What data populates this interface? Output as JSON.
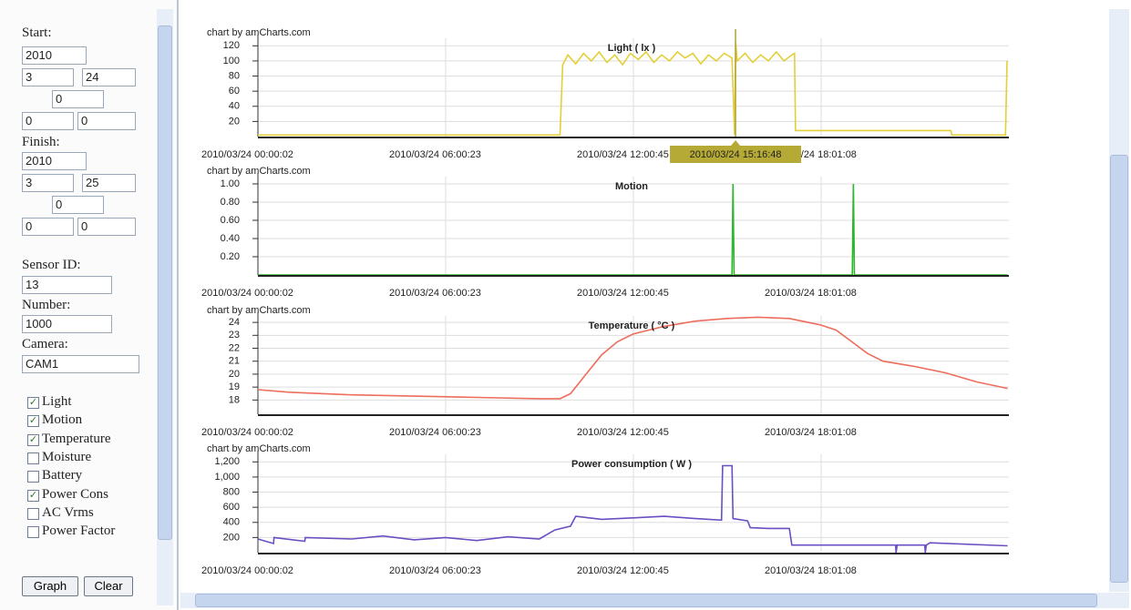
{
  "sidebar": {
    "start": {
      "label": "Start:",
      "year": "2010",
      "month": "3",
      "day": "24",
      "hour": "0",
      "minute": "0",
      "second": "0"
    },
    "finish": {
      "label": "Finish:",
      "year": "2010",
      "month": "3",
      "day": "25",
      "hour": "0",
      "minute": "0",
      "second": "0"
    },
    "sensor_id": {
      "label": "Sensor ID:",
      "value": "13"
    },
    "number": {
      "label": "Number:",
      "value": "1000"
    },
    "camera": {
      "label": "Camera:",
      "value": "CAM1"
    },
    "checkboxes": [
      {
        "label": "Light",
        "checked": true
      },
      {
        "label": "Motion",
        "checked": true
      },
      {
        "label": "Temperature",
        "checked": true
      },
      {
        "label": "Moisture",
        "checked": false
      },
      {
        "label": "Battery",
        "checked": false
      },
      {
        "label": "Power Cons",
        "checked": true
      },
      {
        "label": "AC Vrms",
        "checked": false
      },
      {
        "label": "Power Factor",
        "checked": false
      }
    ],
    "buttons": [
      "Graph",
      "Clear"
    ]
  },
  "chart_data": [
    {
      "type": "line",
      "credit": "chart by amCharts.com",
      "title": "Light ( lx )",
      "color": "#e3cf3a",
      "grid": true,
      "cursor": "2010/03/24 15:16:48",
      "x": [
        "2010/03/24 00:00:02",
        "2010/03/24 09:40:00",
        "2010/03/24 09:45:00",
        "2010/03/24 09:55:00",
        "2010/03/24 10:10:00",
        "2010/03/24 10:25:00",
        "2010/03/24 10:40:00",
        "2010/03/24 10:55:00",
        "2010/03/24 11:10:00",
        "2010/03/24 11:25:00",
        "2010/03/24 11:40:00",
        "2010/03/24 11:55:00",
        "2010/03/24 12:10:00",
        "2010/03/24 12:25:00",
        "2010/03/24 12:40:00",
        "2010/03/24 12:55:00",
        "2010/03/24 13:10:00",
        "2010/03/24 13:25:00",
        "2010/03/24 13:40:00",
        "2010/03/24 13:55:00",
        "2010/03/24 14:10:00",
        "2010/03/24 14:25:00",
        "2010/03/24 14:40:00",
        "2010/03/24 14:55:00",
        "2010/03/24 15:10:00",
        "2010/03/24 15:15:00",
        "2010/03/24 15:17:00",
        "2010/03/24 15:20:00",
        "2010/03/24 15:35:00",
        "2010/03/24 15:50:00",
        "2010/03/24 16:05:00",
        "2010/03/24 16:20:00",
        "2010/03/24 16:35:00",
        "2010/03/24 16:50:00",
        "2010/03/24 17:05:00",
        "2010/03/24 17:10:00",
        "2010/03/24 17:12:00",
        "2010/03/24 22:10:00",
        "2010/03/24 22:12:00",
        "2010/03/24 23:55:00",
        "2010/03/24 23:58:00"
      ],
      "values": [
        2,
        2,
        95,
        108,
        96,
        110,
        100,
        112,
        98,
        108,
        95,
        110,
        102,
        112,
        98,
        108,
        100,
        112,
        104,
        110,
        96,
        108,
        100,
        110,
        104,
        2,
        125,
        100,
        110,
        98,
        108,
        100,
        112,
        100,
        108,
        110,
        8,
        8,
        2,
        2,
        100
      ],
      "xlim": [
        "2010/03/24 00:00:02",
        "2010/03/25 00:01:30"
      ],
      "xticks": [
        "2010/03/24 00:00:02",
        "2010/03/24 06:00:23",
        "2010/03/24 12:00:45",
        "2010/03/24 18:01:08"
      ],
      "ylim": [
        0,
        130
      ],
      "yticks": [
        20,
        40,
        60,
        80,
        100,
        120
      ]
    },
    {
      "type": "line",
      "credit": "chart by amCharts.com",
      "title": "Motion",
      "color": "#2fb52f",
      "grid": true,
      "x": [
        "2010/03/24 00:00:02",
        "2010/03/24 15:10:00",
        "2010/03/24 15:12:00",
        "2010/03/24 15:14:00",
        "2010/03/24 19:01:00",
        "2010/03/24 19:03:00",
        "2010/03/24 19:05:00",
        "2010/03/24 23:59:00"
      ],
      "values": [
        0,
        0,
        1,
        0,
        0,
        1,
        0,
        0
      ],
      "xlim": [
        "2010/03/24 00:00:02",
        "2010/03/25 00:01:30"
      ],
      "xticks": [
        "2010/03/24 00:00:02",
        "2010/03/24 06:00:23",
        "2010/03/24 12:00:45",
        "2010/03/24 18:01:08"
      ],
      "ylim": [
        0,
        1.08
      ],
      "yticks": [
        {
          "value": 0.2,
          "label": "0.20"
        },
        {
          "value": 0.4,
          "label": "0.40"
        },
        {
          "value": 0.6,
          "label": "0.60"
        },
        {
          "value": 0.8,
          "label": "0.80"
        },
        {
          "value": 1,
          "label": "1.00"
        }
      ]
    },
    {
      "type": "line",
      "credit": "chart by amCharts.com",
      "title": "Temperature ( °C )",
      "color": "#ee6d5c",
      "grid": true,
      "x": [
        "2010/03/24 00:00:02",
        "2010/03/24 01:00:00",
        "2010/03/24 03:00:00",
        "2010/03/24 05:00:00",
        "2010/03/24 07:00:00",
        "2010/03/24 09:00:00",
        "2010/03/24 09:40:00",
        "2010/03/24 10:00:00",
        "2010/03/24 10:30:00",
        "2010/03/24 11:00:00",
        "2010/03/24 11:30:00",
        "2010/03/24 12:00:00",
        "2010/03/24 13:00:00",
        "2010/03/24 14:00:00",
        "2010/03/24 15:00:00",
        "2010/03/24 16:00:00",
        "2010/03/24 17:00:00",
        "2010/03/24 18:00:00",
        "2010/03/24 18:30:00",
        "2010/03/24 19:00:00",
        "2010/03/24 19:30:00",
        "2010/03/24 20:00:00",
        "2010/03/24 21:00:00",
        "2010/03/24 22:00:00",
        "2010/03/24 23:00:00",
        "2010/03/24 23:59:00"
      ],
      "values": [
        18.8,
        18.6,
        18.4,
        18.3,
        18.2,
        18.1,
        18.1,
        18.5,
        20,
        21.5,
        22.5,
        23.1,
        23.7,
        24.1,
        24.3,
        24.4,
        24.3,
        23.8,
        23.4,
        22.5,
        21.6,
        21,
        20.6,
        20.1,
        19.4,
        18.9
      ],
      "xlim": [
        "2010/03/24 00:00:02",
        "2010/03/25 00:01:30"
      ],
      "xticks": [
        "2010/03/24 00:00:02",
        "2010/03/24 06:00:23",
        "2010/03/24 12:00:45",
        "2010/03/24 18:01:08"
      ],
      "ylim": [
        16.9,
        24.5
      ],
      "yticks": [
        18,
        19,
        20,
        21,
        22,
        23,
        24
      ]
    },
    {
      "type": "line",
      "credit": "chart by amCharts.com",
      "title": "Power consumption ( W )",
      "color": "#6b4fc2",
      "grid": true,
      "x": [
        "2010/03/24 00:00:02",
        "2010/03/24 00:30:00",
        "2010/03/24 00:31:00",
        "2010/03/24 01:30:00",
        "2010/03/24 01:31:00",
        "2010/03/24 03:00:00",
        "2010/03/24 04:00:00",
        "2010/03/24 05:00:00",
        "2010/03/24 06:00:00",
        "2010/03/24 07:00:00",
        "2010/03/24 08:00:00",
        "2010/03/24 09:00:00",
        "2010/03/24 09:30:00",
        "2010/03/24 10:00:00",
        "2010/03/24 10:10:00",
        "2010/03/24 11:00:00",
        "2010/03/24 12:00:00",
        "2010/03/24 13:00:00",
        "2010/03/24 14:00:00",
        "2010/03/24 14:50:00",
        "2010/03/24 14:52:00",
        "2010/03/24 15:10:00",
        "2010/03/24 15:12:00",
        "2010/03/24 15:40:00",
        "2010/03/24 15:45:00",
        "2010/03/24 16:20:00",
        "2010/03/24 17:00:00",
        "2010/03/24 17:05:00",
        "2010/03/24 20:24:00",
        "2010/03/24 20:25:00",
        "2010/03/24 20:27:00",
        "2010/03/24 21:20:00",
        "2010/03/24 21:21:00",
        "2010/03/24 21:23:00",
        "2010/03/24 21:30:00",
        "2010/03/24 23:59:00"
      ],
      "values": [
        180,
        120,
        200,
        150,
        200,
        180,
        220,
        170,
        200,
        160,
        210,
        180,
        300,
        350,
        480,
        440,
        460,
        480,
        450,
        430,
        1150,
        1150,
        450,
        420,
        330,
        320,
        320,
        100,
        100,
        0,
        100,
        100,
        0,
        100,
        130,
        90
      ],
      "xlim": [
        "2010/03/24 00:00:02",
        "2010/03/25 00:01:30"
      ],
      "xticks": [
        "2010/03/24 00:00:02",
        "2010/03/24 06:00:23",
        "2010/03/24 12:00:45",
        "2010/03/24 18:01:08"
      ],
      "ylim": [
        0,
        1300
      ],
      "yticks": [
        200,
        400,
        600,
        800,
        {
          "value": 1000,
          "label": "1,000"
        },
        {
          "value": 1200,
          "label": "1,200"
        }
      ]
    }
  ]
}
